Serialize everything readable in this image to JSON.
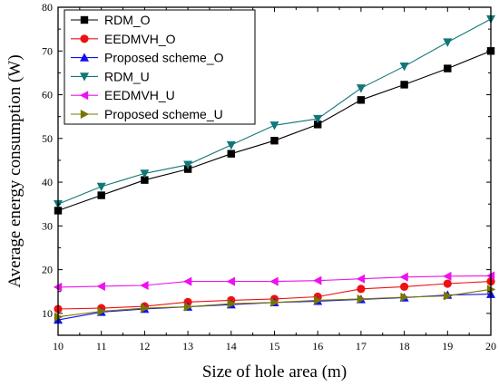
{
  "chart_data": {
    "type": "line",
    "title": "",
    "xlabel": "Size of hole area (m)",
    "ylabel": "Average energy consumption (W)",
    "x": [
      10,
      11,
      12,
      13,
      14,
      15,
      16,
      17,
      18,
      19,
      20
    ],
    "xlim": [
      10,
      20
    ],
    "ylim": [
      5,
      80
    ],
    "xticks": [
      "10",
      "11",
      "12",
      "13",
      "14",
      "15",
      "16",
      "17",
      "18",
      "19",
      "20"
    ],
    "yticks": [
      "10",
      "20",
      "30",
      "40",
      "50",
      "60",
      "70",
      "80"
    ],
    "grid": false,
    "legend_position": "top-left",
    "series": [
      {
        "name": "RDM_O",
        "color": "#000000",
        "marker": "square",
        "values": [
          33.5,
          37.0,
          40.5,
          43.0,
          46.5,
          49.5,
          53.2,
          58.8,
          62.3,
          66.0,
          70.0
        ]
      },
      {
        "name": "EEDMVH_O",
        "color": "#ee1111",
        "marker": "circle",
        "values": [
          11.0,
          11.2,
          11.6,
          12.6,
          13.0,
          13.3,
          13.8,
          15.6,
          16.1,
          16.8,
          17.3
        ]
      },
      {
        "name": "Proposed scheme_O",
        "color": "#1111ee",
        "marker": "triangle-up",
        "values": [
          8.5,
          10.3,
          11.0,
          11.5,
          12.0,
          12.5,
          12.8,
          13.2,
          13.6,
          14.2,
          14.4
        ]
      },
      {
        "name": "RDM_U",
        "color": "#117777",
        "marker": "triangle-down",
        "values": [
          35.0,
          39.0,
          42.0,
          44.0,
          48.5,
          53.0,
          54.5,
          61.5,
          66.5,
          72.0,
          77.3
        ]
      },
      {
        "name": "EEDMVH_U",
        "color": "#ee11ee",
        "marker": "triangle-left",
        "values": [
          16.0,
          16.2,
          16.4,
          17.3,
          17.3,
          17.3,
          17.5,
          17.9,
          18.3,
          18.5,
          18.6
        ]
      },
      {
        "name": "Proposed scheme_U",
        "color": "#777700",
        "marker": "triangle-right",
        "values": [
          9.2,
          10.5,
          11.2,
          11.5,
          12.2,
          12.5,
          13.0,
          13.3,
          13.7,
          14.0,
          15.5
        ]
      }
    ]
  }
}
